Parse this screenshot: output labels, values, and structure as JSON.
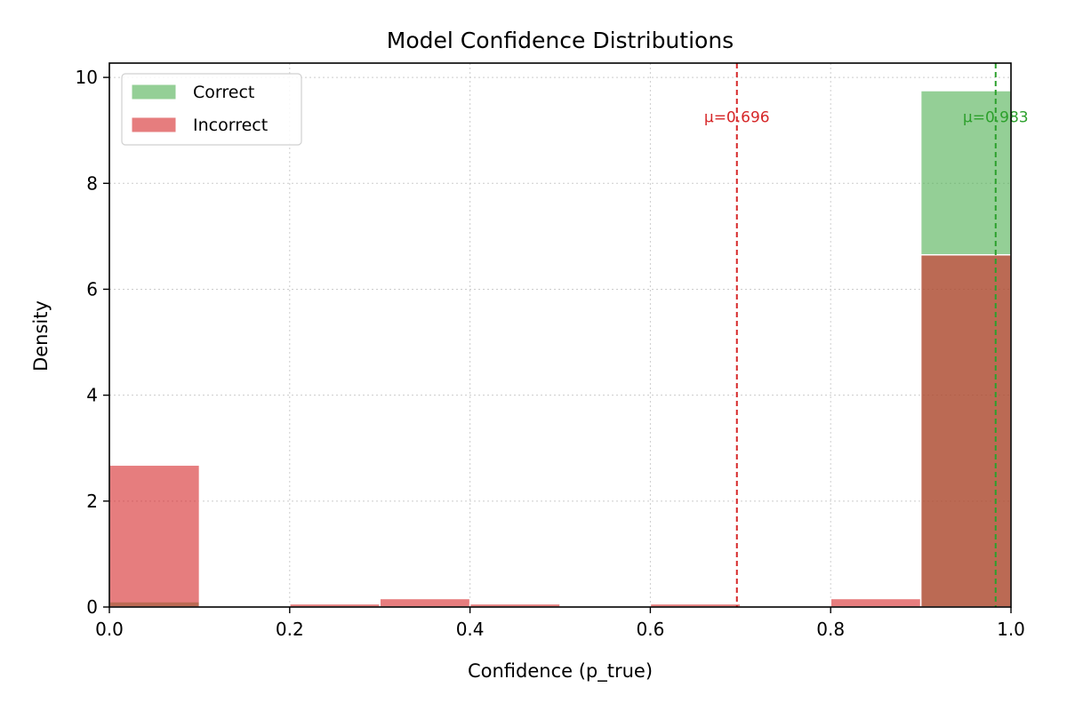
{
  "chart_data": {
    "type": "bar",
    "title": "Model Confidence Distributions",
    "xlabel": "Confidence (p_true)",
    "ylabel": "Density",
    "xlim": [
      0.0,
      1.0
    ],
    "ylim": [
      0,
      10.27
    ],
    "xticks": [
      "0.0",
      "0.2",
      "0.4",
      "0.6",
      "0.8",
      "1.0"
    ],
    "yticks": [
      "0",
      "2",
      "4",
      "6",
      "8",
      "10"
    ],
    "grid": true,
    "legend_position": "top-left",
    "bin_edges": [
      0.0,
      0.1,
      0.2,
      0.3,
      0.4,
      0.5,
      0.6,
      0.7,
      0.8,
      0.9,
      1.0
    ],
    "series": [
      {
        "name": "Correct",
        "color": "#4caf50",
        "values": [
          0.1,
          0.0,
          0.0,
          0.0,
          0.0,
          0.0,
          0.0,
          0.0,
          0.0,
          9.75
        ]
      },
      {
        "name": "Incorrect",
        "color": "#d62728",
        "values": [
          2.68,
          0.0,
          0.06,
          0.16,
          0.06,
          0.0,
          0.06,
          0.0,
          0.16,
          6.65
        ]
      }
    ],
    "mean_lines": [
      {
        "series": "Incorrect",
        "value": 0.696,
        "label": "μ=0.696",
        "color": "#d62728"
      },
      {
        "series": "Correct",
        "value": 0.983,
        "label": "μ=0.983",
        "color": "#2ca02c"
      }
    ]
  }
}
